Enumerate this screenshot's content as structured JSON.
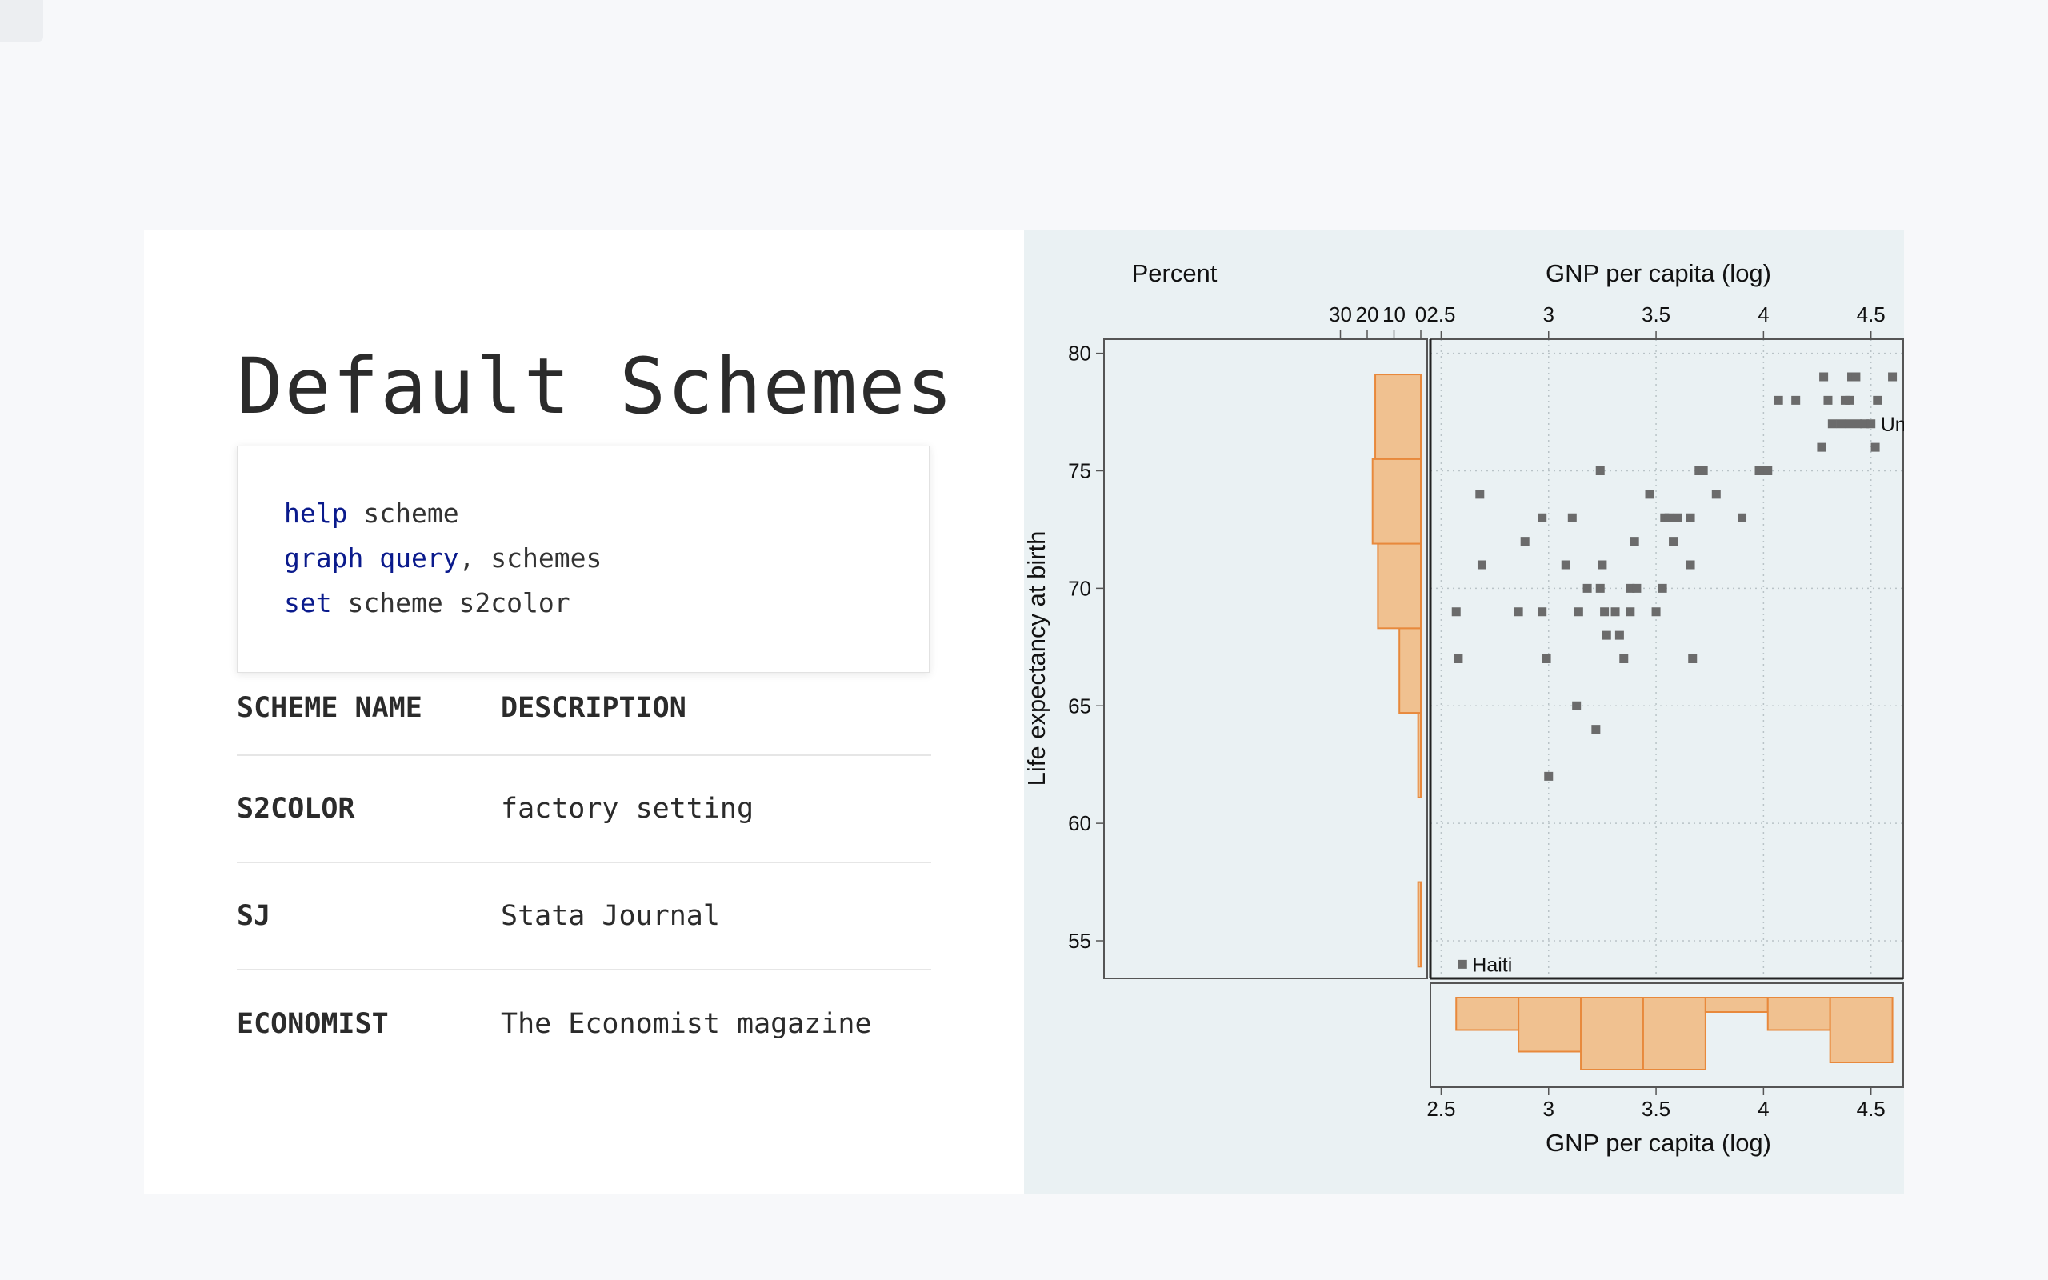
{
  "slide": {
    "title": "Default Schemes",
    "code": [
      {
        "keyword": "help",
        "rest": " scheme"
      },
      {
        "keyword": "graph query",
        "rest": ", schemes"
      },
      {
        "keyword": "set",
        "rest": " scheme s2color"
      }
    ],
    "table": {
      "headers": [
        "SCHEME NAME",
        "DESCRIPTION"
      ],
      "rows": [
        {
          "name": "S2COLOR",
          "description": "factory setting"
        },
        {
          "name": "SJ",
          "description": "Stata Journal"
        },
        {
          "name": "ECONOMIST",
          "description": "The Economist magazine"
        }
      ]
    }
  },
  "colors": {
    "plot_background": "#eaf1f3",
    "bar_fill": "#f0c190",
    "bar_stroke": "#e8893c",
    "marker": "#6b6b6b",
    "keyword": "#0a1a8c"
  },
  "chart_data": {
    "type": "scatter",
    "xlabel": "GNP per capita (log)",
    "ylabel": "Life expectancy at birth",
    "xlim": [
      2.45,
      4.65
    ],
    "ylim": [
      53.4,
      80.6
    ],
    "xticks": [
      2.5,
      3,
      3.5,
      4,
      4.5
    ],
    "yticks": [
      55,
      60,
      65,
      70,
      75,
      80
    ],
    "grid": true,
    "points": [
      [
        2.57,
        69
      ],
      [
        2.58,
        67
      ],
      [
        2.68,
        74
      ],
      [
        2.69,
        71
      ],
      [
        2.86,
        69
      ],
      [
        2.89,
        72
      ],
      [
        2.97,
        73
      ],
      [
        2.99,
        67
      ],
      [
        3.0,
        62
      ],
      [
        2.97,
        69
      ],
      [
        3.08,
        71
      ],
      [
        3.11,
        73
      ],
      [
        3.13,
        65
      ],
      [
        3.14,
        69
      ],
      [
        3.18,
        70
      ],
      [
        3.22,
        64
      ],
      [
        3.24,
        75
      ],
      [
        3.25,
        71
      ],
      [
        3.24,
        70
      ],
      [
        3.26,
        69
      ],
      [
        3.27,
        68
      ],
      [
        3.31,
        69
      ],
      [
        3.33,
        68
      ],
      [
        3.35,
        67
      ],
      [
        3.38,
        70
      ],
      [
        3.38,
        69
      ],
      [
        3.4,
        72
      ],
      [
        3.41,
        70
      ],
      [
        3.47,
        74
      ],
      [
        3.5,
        69
      ],
      [
        3.53,
        70
      ],
      [
        3.54,
        73
      ],
      [
        3.56,
        73
      ],
      [
        3.58,
        72
      ],
      [
        3.6,
        73
      ],
      [
        3.66,
        71
      ],
      [
        3.66,
        73
      ],
      [
        3.67,
        67
      ],
      [
        3.7,
        75
      ],
      [
        3.72,
        75
      ],
      [
        3.78,
        74
      ],
      [
        3.9,
        73
      ],
      [
        3.98,
        75
      ],
      [
        4.02,
        75
      ],
      [
        4.07,
        78
      ],
      [
        4.15,
        78
      ],
      [
        4.27,
        76
      ],
      [
        4.28,
        79
      ],
      [
        4.3,
        78
      ],
      [
        4.32,
        77
      ],
      [
        4.36,
        77
      ],
      [
        4.38,
        78
      ],
      [
        4.4,
        77
      ],
      [
        4.4,
        78
      ],
      [
        4.41,
        79
      ],
      [
        4.43,
        79
      ],
      [
        4.44,
        77
      ],
      [
        4.47,
        77
      ],
      [
        4.52,
        76
      ],
      [
        4.53,
        78
      ],
      [
        4.6,
        79
      ],
      [
        4.5,
        77
      ],
      [
        2.6,
        54
      ]
    ],
    "point_labels": [
      {
        "text": "United States",
        "x": 4.5,
        "y": 77
      },
      {
        "text": "Haiti",
        "x": 2.6,
        "y": 54
      }
    ],
    "histogram_y": {
      "label": "Percent",
      "ticks": [
        30,
        20,
        10,
        0
      ],
      "bins": [
        {
          "from": 53.9,
          "to": 57.5,
          "percent": 1
        },
        {
          "from": 61.1,
          "to": 64.7,
          "percent": 1
        },
        {
          "from": 64.7,
          "to": 68.3,
          "percent": 8
        },
        {
          "from": 68.3,
          "to": 71.9,
          "percent": 16
        },
        {
          "from": 71.9,
          "to": 75.5,
          "percent": 18
        },
        {
          "from": 75.5,
          "to": 79.1,
          "percent": 17
        }
      ]
    },
    "histogram_x": {
      "label": "Percent",
      "ticks": [
        0,
        10,
        20
      ],
      "bins": [
        {
          "from": 2.57,
          "to": 2.86,
          "percent": 9
        },
        {
          "from": 2.86,
          "to": 3.15,
          "percent": 15
        },
        {
          "from": 3.15,
          "to": 3.44,
          "percent": 20
        },
        {
          "from": 3.44,
          "to": 3.73,
          "percent": 20
        },
        {
          "from": 3.73,
          "to": 4.02,
          "percent": 4
        },
        {
          "from": 4.02,
          "to": 4.31,
          "percent": 9
        },
        {
          "from": 4.31,
          "to": 4.6,
          "percent": 18
        }
      ]
    }
  }
}
